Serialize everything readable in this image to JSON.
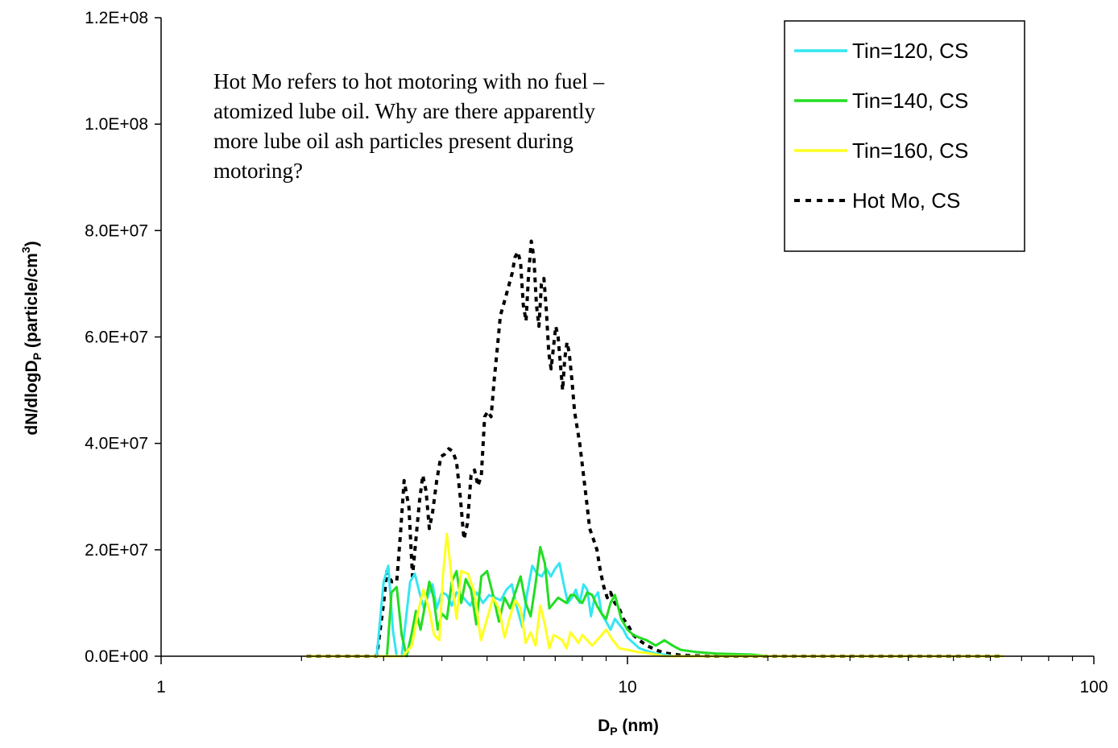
{
  "chart_data": {
    "type": "line",
    "title": "",
    "xlabel": {
      "main": "D",
      "sub": "P",
      "rest": " (nm)"
    },
    "ylabel": {
      "main": "dN/dlogD",
      "sub": "P",
      "rest": " (particle/cm",
      "sup": "3",
      "end": ")"
    },
    "x_scale": "log",
    "xlim": [
      1,
      100
    ],
    "ylim": [
      0,
      120000000
    ],
    "x_ticks": [
      {
        "value": 1,
        "label": "1"
      },
      {
        "value": 10,
        "label": "10"
      },
      {
        "value": 100,
        "label": "100"
      }
    ],
    "y_ticks": [
      {
        "value": 0,
        "label": "0.0E+00"
      },
      {
        "value": 20000000,
        "label": "2.0E+07"
      },
      {
        "value": 40000000,
        "label": "4.0E+07"
      },
      {
        "value": 60000000,
        "label": "6.0E+07"
      },
      {
        "value": 80000000,
        "label": "8.0E+07"
      },
      {
        "value": 100000000,
        "label": "1.0E+08"
      },
      {
        "value": 120000000,
        "label": "1.2E+08"
      }
    ],
    "grid": false,
    "legend": "top-right",
    "annotation": [
      "Hot Mo refers to hot motoring with no fuel –",
      "atomized lube oil. Why are there apparently",
      "more lube oil ash particles present during",
      "motoring?"
    ],
    "series": [
      {
        "name": "Tin=120, CS",
        "color": "#33e6f2",
        "dash": "solid",
        "x": [
          2.05,
          2.5,
          2.9,
          3.0,
          3.07,
          3.14,
          3.2,
          3.28,
          3.34,
          3.42,
          3.5,
          3.58,
          3.66,
          3.74,
          3.82,
          3.9,
          4.0,
          4.1,
          4.2,
          4.3,
          4.45,
          4.6,
          4.75,
          4.9,
          5.05,
          5.2,
          5.35,
          5.5,
          5.65,
          5.8,
          5.95,
          6.1,
          6.25,
          6.4,
          6.55,
          6.7,
          6.85,
          7.0,
          7.15,
          7.3,
          7.45,
          7.6,
          7.75,
          7.9,
          8.05,
          8.2,
          8.35,
          8.5,
          8.65,
          8.8,
          9.0,
          9.2,
          9.4,
          9.6,
          9.8,
          10.0,
          10.3,
          10.6,
          11.0,
          11.5,
          12.0,
          12.5,
          13.5,
          15.0,
          18.0,
          25.0,
          40.0,
          64.0
        ],
        "y": [
          0,
          0,
          0,
          14000000,
          17000000,
          5000000,
          0,
          0,
          6000000,
          14000000,
          15500000,
          12000000,
          9000000,
          11500000,
          13500000,
          9000000,
          12000000,
          11500000,
          9500000,
          12000000,
          11000000,
          9500000,
          12000000,
          10000000,
          11500000,
          11000000,
          10500000,
          12500000,
          13500000,
          9000000,
          5500000,
          12000000,
          17000000,
          15500000,
          15000000,
          16500000,
          15000000,
          16500000,
          17500000,
          13500000,
          10000000,
          11000000,
          12500000,
          10000000,
          13500000,
          12500000,
          7500000,
          11000000,
          12000000,
          8000000,
          6500000,
          5000000,
          7000000,
          6000000,
          5000000,
          3500000,
          2500000,
          1500000,
          1000000,
          500000,
          300000,
          0,
          0,
          0,
          0,
          0,
          0,
          0
        ]
      },
      {
        "name": "Tin=140, CS",
        "color": "#22dd22",
        "dash": "solid",
        "x": [
          2.05,
          2.5,
          2.9,
          3.05,
          3.12,
          3.2,
          3.28,
          3.36,
          3.44,
          3.52,
          3.6,
          3.68,
          3.76,
          3.84,
          3.92,
          4.0,
          4.1,
          4.2,
          4.3,
          4.4,
          4.5,
          4.62,
          4.74,
          4.86,
          5.0,
          5.15,
          5.3,
          5.45,
          5.6,
          5.75,
          5.9,
          6.05,
          6.2,
          6.35,
          6.5,
          6.65,
          6.8,
          6.95,
          7.1,
          7.25,
          7.4,
          7.55,
          7.7,
          7.85,
          8.0,
          8.2,
          8.4,
          8.6,
          8.8,
          9.0,
          9.2,
          9.4,
          9.7,
          10.0,
          10.3,
          10.6,
          11.0,
          11.5,
          12.0,
          12.5,
          13.0,
          14.0,
          15.5,
          17.0,
          18.5,
          20.0,
          25.0,
          40.0,
          64.0
        ],
        "y": [
          0,
          0,
          0,
          0,
          12000000,
          13000000,
          4000000,
          0,
          4000000,
          8500000,
          5000000,
          9500000,
          14000000,
          11000000,
          5000000,
          8000000,
          7000000,
          14000000,
          16000000,
          10000000,
          14500000,
          12500000,
          6000000,
          15000000,
          16000000,
          11500000,
          6500000,
          11000000,
          9000000,
          12000000,
          15000000,
          10000000,
          7500000,
          13500000,
          20500000,
          17500000,
          9000000,
          10000000,
          11000000,
          10500000,
          10000000,
          11500000,
          11500000,
          10500000,
          10000000,
          12000000,
          11500000,
          9500000,
          8000000,
          7000000,
          10000000,
          11500000,
          7000000,
          5000000,
          4000000,
          3500000,
          3000000,
          2000000,
          3000000,
          2000000,
          1200000,
          800000,
          500000,
          400000,
          300000,
          0,
          0,
          0,
          0
        ]
      },
      {
        "name": "Tin=160, CS",
        "color": "#ffff22",
        "dash": "solid",
        "x": [
          2.05,
          2.5,
          3.0,
          3.3,
          3.45,
          3.55,
          3.65,
          3.75,
          3.85,
          3.95,
          4.02,
          4.1,
          4.2,
          4.3,
          4.4,
          4.55,
          4.7,
          4.85,
          5.0,
          5.15,
          5.3,
          5.45,
          5.6,
          5.75,
          5.9,
          6.05,
          6.2,
          6.35,
          6.5,
          6.65,
          6.8,
          6.95,
          7.1,
          7.25,
          7.4,
          7.55,
          7.7,
          7.85,
          8.0,
          8.2,
          8.4,
          8.6,
          8.8,
          9.0,
          9.3,
          9.6,
          10.0,
          10.5,
          11.0,
          11.5,
          12.0,
          13.0,
          15.0,
          20.0,
          30.0,
          50.0,
          64.0
        ],
        "y": [
          0,
          0,
          0,
          0,
          2000000,
          8000000,
          12500000,
          9000000,
          4000000,
          3000000,
          15000000,
          23000000,
          14500000,
          7000000,
          16000000,
          15500000,
          12000000,
          3000000,
          7000000,
          11000000,
          9000000,
          3500000,
          7500000,
          10500000,
          9000000,
          2500000,
          4500000,
          2000000,
          9500000,
          6000000,
          1500000,
          4000000,
          3500000,
          3000000,
          1500000,
          4500000,
          3500000,
          2500000,
          4000000,
          3000000,
          2000000,
          3000000,
          4000000,
          5000000,
          3000000,
          1500000,
          1200000,
          800000,
          600000,
          300000,
          0,
          0,
          0,
          0,
          0,
          0,
          0
        ]
      },
      {
        "name": "Hot Mo, CS",
        "color": "#000000",
        "dash": "dotted",
        "x": [
          2.05,
          2.5,
          2.8,
          2.9,
          2.95,
          3.0,
          3.05,
          3.12,
          3.2,
          3.26,
          3.32,
          3.4,
          3.46,
          3.52,
          3.58,
          3.64,
          3.7,
          3.76,
          3.82,
          3.9,
          3.98,
          4.06,
          4.14,
          4.22,
          4.3,
          4.38,
          4.46,
          4.54,
          4.62,
          4.7,
          4.78,
          4.86,
          4.94,
          5.02,
          5.1,
          5.18,
          5.26,
          5.34,
          5.42,
          5.5,
          5.58,
          5.66,
          5.74,
          5.82,
          5.9,
          5.98,
          6.06,
          6.14,
          6.22,
          6.3,
          6.38,
          6.46,
          6.54,
          6.62,
          6.7,
          6.78,
          6.86,
          6.94,
          7.02,
          7.1,
          7.18,
          7.26,
          7.34,
          7.42,
          7.5,
          7.6,
          7.7,
          7.8,
          7.9,
          8.0,
          8.15,
          8.3,
          8.45,
          8.6,
          8.75,
          8.9,
          9.05,
          9.2,
          9.4,
          9.6,
          9.8,
          10.0,
          10.3,
          10.6,
          11.0,
          11.5,
          12.0,
          13.0,
          15.0,
          20.0,
          30.0,
          45.0,
          64.0
        ],
        "y": [
          0,
          0,
          0,
          0,
          5000000,
          10000000,
          16000000,
          14000000,
          14000000,
          23000000,
          33000000,
          28000000,
          15000000,
          22000000,
          29000000,
          34000000,
          31000000,
          24000000,
          27000000,
          33000000,
          37500000,
          38000000,
          39000000,
          38500000,
          36500000,
          30000000,
          22000000,
          25000000,
          34000000,
          35000000,
          32000000,
          34000000,
          45000000,
          46000000,
          45000000,
          52000000,
          58000000,
          64000000,
          66000000,
          68000000,
          70000000,
          72000000,
          75000000,
          76000000,
          74000000,
          66000000,
          63000000,
          72000000,
          78000000,
          75000000,
          66000000,
          62000000,
          70000000,
          71000000,
          65000000,
          57000000,
          54000000,
          58000000,
          62000000,
          60000000,
          55000000,
          50000000,
          56000000,
          59000000,
          57000000,
          52000000,
          46000000,
          43000000,
          40000000,
          36000000,
          30000000,
          24000000,
          22000000,
          20000000,
          16000000,
          13000000,
          11000000,
          12000000,
          10000000,
          9000000,
          7000000,
          6000000,
          4000000,
          3000000,
          2000000,
          1200000,
          600000,
          200000,
          0,
          0,
          0,
          0,
          0
        ]
      }
    ]
  }
}
